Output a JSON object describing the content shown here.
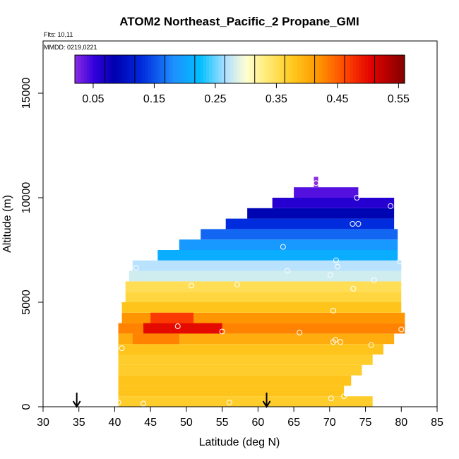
{
  "chart_data": {
    "type": "heatmap",
    "title": "ATOM2 Northeast_Pacific_2 Propane_GMI",
    "flights": "Flts: 10,11",
    "dates": "MMDD: 0219,0221",
    "xlabel": "Latitude (deg N)",
    "ylabel": "Altitude (m)",
    "xlim": [
      30,
      85
    ],
    "ylim": [
      0,
      17500
    ],
    "xticks": [
      "30",
      "35",
      "40",
      "45",
      "50",
      "55",
      "60",
      "65",
      "70",
      "75",
      "80",
      "85"
    ],
    "yticks": [
      "0",
      "5000",
      "10000",
      "15000"
    ],
    "colorbar": {
      "range": [
        0.02,
        0.56
      ],
      "tick_labels": [
        "0.05",
        "0.15",
        "0.25",
        "0.35",
        "0.45",
        "0.55"
      ],
      "tick_values": [
        0.05,
        0.15,
        0.25,
        0.35,
        0.45,
        0.55
      ]
    },
    "arrows_latitude": [
      34.7,
      61.2
    ],
    "altitude_bands": [
      {
        "alt": 250,
        "lat_start": 40.5,
        "lat_end": 76,
        "value": 0.37
      },
      {
        "alt": 750,
        "lat_start": 40.5,
        "lat_end": 72,
        "value": 0.38
      },
      {
        "alt": 1250,
        "lat_start": 40.5,
        "lat_end": 73,
        "value": 0.38
      },
      {
        "alt": 1750,
        "lat_start": 40.5,
        "lat_end": 74.5,
        "value": 0.37
      },
      {
        "alt": 2250,
        "lat_start": 40.5,
        "lat_end": 76,
        "value": 0.37
      },
      {
        "alt": 2750,
        "lat_start": 40.5,
        "lat_end": 77.5,
        "value": 0.38
      },
      {
        "alt": 3250,
        "lat_start": 40.5,
        "lat_end": 79,
        "value": 0.4
      },
      {
        "alt": 3750,
        "lat_start": 40.5,
        "lat_end": 80.5,
        "value": 0.43
      },
      {
        "alt": 4250,
        "lat_start": 41,
        "lat_end": 80.5,
        "value": 0.42
      },
      {
        "alt": 4750,
        "lat_start": 41,
        "lat_end": 80,
        "value": 0.38
      },
      {
        "alt": 5250,
        "lat_start": 41.5,
        "lat_end": 80,
        "value": 0.36
      },
      {
        "alt": 5750,
        "lat_start": 41.5,
        "lat_end": 80,
        "value": 0.35
      },
      {
        "alt": 6250,
        "lat_start": 42,
        "lat_end": 80,
        "value": 0.28
      },
      {
        "alt": 6750,
        "lat_start": 42.5,
        "lat_end": 80,
        "value": 0.27
      },
      {
        "alt": 7250,
        "lat_start": 46,
        "lat_end": 79.5,
        "value": 0.21
      },
      {
        "alt": 7750,
        "lat_start": 49,
        "lat_end": 79.5,
        "value": 0.19
      },
      {
        "alt": 8250,
        "lat_start": 52,
        "lat_end": 79.5,
        "value": 0.16
      },
      {
        "alt": 8750,
        "lat_start": 55.5,
        "lat_end": 79,
        "value": 0.13
      },
      {
        "alt": 9250,
        "lat_start": 58.5,
        "lat_end": 79,
        "value": 0.09
      },
      {
        "alt": 9750,
        "lat_start": 62,
        "lat_end": 79,
        "value": 0.06
      },
      {
        "alt": 10250,
        "lat_start": 65,
        "lat_end": 74,
        "value": 0.04
      },
      {
        "alt": 10750,
        "lat_start": 67.8,
        "lat_end": 68.4,
        "value": 0.02
      }
    ],
    "hotspots": [
      {
        "alt": 3750,
        "lat_start": 44,
        "lat_end": 55,
        "value": 0.5
      },
      {
        "alt": 4250,
        "lat_start": 45,
        "lat_end": 51,
        "value": 0.47
      },
      {
        "alt": 3250,
        "lat_start": 42.5,
        "lat_end": 49,
        "value": 0.43
      }
    ],
    "points": [
      {
        "lat": 40.5,
        "alt": 200
      },
      {
        "lat": 44,
        "alt": 150
      },
      {
        "lat": 56,
        "alt": 200
      },
      {
        "lat": 70.2,
        "alt": 400
      },
      {
        "lat": 72,
        "alt": 500
      },
      {
        "lat": 41,
        "alt": 2800
      },
      {
        "lat": 70.5,
        "alt": 3100
      },
      {
        "lat": 71.5,
        "alt": 3100
      },
      {
        "lat": 70.8,
        "alt": 3200
      },
      {
        "lat": 75.8,
        "alt": 2950
      },
      {
        "lat": 65.8,
        "alt": 3550
      },
      {
        "lat": 55,
        "alt": 3600
      },
      {
        "lat": 48.8,
        "alt": 3850
      },
      {
        "lat": 80,
        "alt": 3700
      },
      {
        "lat": 70.5,
        "alt": 4600
      },
      {
        "lat": 50.7,
        "alt": 5800
      },
      {
        "lat": 57.1,
        "alt": 5850
      },
      {
        "lat": 73.3,
        "alt": 5650
      },
      {
        "lat": 76.2,
        "alt": 6050
      },
      {
        "lat": 70.1,
        "alt": 6300
      },
      {
        "lat": 64.1,
        "alt": 6500
      },
      {
        "lat": 43,
        "alt": 6650
      },
      {
        "lat": 71.1,
        "alt": 6700
      },
      {
        "lat": 70.9,
        "alt": 7000
      },
      {
        "lat": 79.8,
        "alt": 6950
      },
      {
        "lat": 63.5,
        "alt": 7650
      },
      {
        "lat": 73.2,
        "alt": 8750
      },
      {
        "lat": 74,
        "alt": 8750
      },
      {
        "lat": 78.5,
        "alt": 9600
      },
      {
        "lat": 73.8,
        "alt": 10000
      },
      {
        "lat": 68.1,
        "alt": 10700
      }
    ]
  }
}
